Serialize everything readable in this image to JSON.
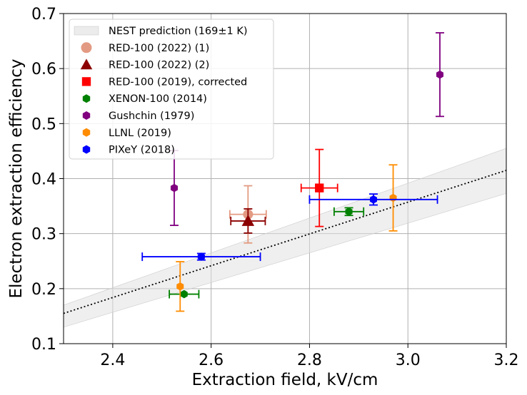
{
  "chart_data": {
    "type": "scatter",
    "xlabel": "Extraction field, kV/cm",
    "ylabel": "Electron extraction efficiency",
    "xlim": [
      2.3,
      3.2
    ],
    "ylim": [
      0.1,
      0.7
    ],
    "xticks": [
      {
        "value": 2.4,
        "label": "2.4"
      },
      {
        "value": 2.6,
        "label": "2.6"
      },
      {
        "value": 2.8,
        "label": "2.8"
      },
      {
        "value": 3.0,
        "label": "3.0"
      },
      {
        "value": 3.2,
        "label": "3.2"
      }
    ],
    "yticks": [
      {
        "value": 0.1,
        "label": "0.1"
      },
      {
        "value": 0.2,
        "label": "0.2"
      },
      {
        "value": 0.3,
        "label": "0.3"
      },
      {
        "value": 0.4,
        "label": "0.4"
      },
      {
        "value": 0.5,
        "label": "0.5"
      },
      {
        "value": 0.6,
        "label": "0.6"
      },
      {
        "value": 0.7,
        "label": "0.7"
      }
    ],
    "grid": true,
    "legend_position": "top-left",
    "band": {
      "name": "NEST prediction (169±1 K)",
      "color": "#e0e0e0",
      "lower": [
        [
          2.3,
          0.13
        ],
        [
          3.2,
          0.373
        ]
      ],
      "upper": [
        [
          2.3,
          0.17
        ],
        [
          3.2,
          0.455
        ]
      ]
    },
    "fit_line": {
      "style": "dotted",
      "color": "#000000",
      "points": [
        [
          2.3,
          0.155
        ],
        [
          3.2,
          0.415
        ]
      ]
    },
    "series": [
      {
        "name": "RED-100 (2022) (1)",
        "marker": "circle",
        "color": "#e39a82",
        "points": [
          {
            "x": 2.675,
            "y": 0.335,
            "xerr": 0.037,
            "yerr": 0.052
          }
        ]
      },
      {
        "name": "RED-100 (2022) (2)",
        "marker": "triangle",
        "color": "#8b0000",
        "points": [
          {
            "x": 2.675,
            "y": 0.323,
            "xerr": 0.035,
            "yerr": 0.022
          }
        ]
      },
      {
        "name": "RED-100 (2019), corrected",
        "marker": "square",
        "color": "#ff0000",
        "points": [
          {
            "x": 2.82,
            "y": 0.383,
            "xerr": 0.037,
            "yerr": 0.07
          }
        ]
      },
      {
        "name": "XENON-100 (2014)",
        "marker": "hexagon",
        "color": "#008000",
        "points": [
          {
            "x": 2.545,
            "y": 0.19,
            "xerr": 0.03,
            "yerr": 0.0
          },
          {
            "x": 2.88,
            "y": 0.34,
            "xerr": 0.03,
            "yerr": 0.007
          }
        ]
      },
      {
        "name": "Gushchin (1979)",
        "marker": "hexagon",
        "color": "#800080",
        "points": [
          {
            "x": 2.525,
            "y": 0.383,
            "xerr": 0.0,
            "yerr": 0.068
          },
          {
            "x": 3.065,
            "y": 0.589,
            "xerr": 0.0,
            "yerr": 0.076
          }
        ]
      },
      {
        "name": "LLNL (2019)",
        "marker": "hexagon",
        "color": "#ff8c00",
        "points": [
          {
            "x": 2.537,
            "y": 0.204,
            "xerr": 0.0,
            "yerr": 0.045
          },
          {
            "x": 2.97,
            "y": 0.365,
            "xerr": 0.0,
            "yerr": 0.06
          }
        ]
      },
      {
        "name": "PIXeY (2018)",
        "marker": "hexagon",
        "color": "#0000ff",
        "points": [
          {
            "x": 2.58,
            "y": 0.258,
            "xerr": 0.12,
            "yerr": 0.006
          },
          {
            "x": 2.93,
            "y": 0.362,
            "xerr": 0.13,
            "yerr": 0.01
          }
        ]
      }
    ]
  }
}
